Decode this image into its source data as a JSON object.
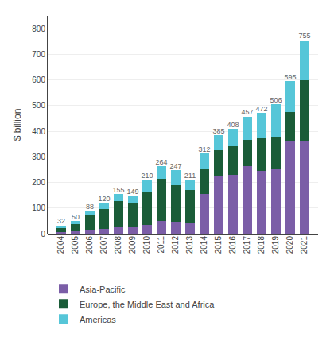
{
  "chart_data": {
    "type": "bar",
    "stacked": true,
    "categories": [
      "2004",
      "2005",
      "2006",
      "2007",
      "2008",
      "2009",
      "2010",
      "2011",
      "2012",
      "2013",
      "2014",
      "2015",
      "2016",
      "2017",
      "2018",
      "2019",
      "2020",
      "2021"
    ],
    "series": [
      {
        "name": "Asia-Pacific",
        "color": "#7b5ea7",
        "values": [
          5,
          8,
          15,
          20,
          28,
          26,
          35,
          50,
          45,
          40,
          155,
          225,
          230,
          265,
          245,
          250,
          360,
          360
        ]
      },
      {
        "name": "Europe, the Middle East and Africa",
        "color": "#1a5c38",
        "values": [
          18,
          28,
          55,
          75,
          100,
          95,
          130,
          165,
          145,
          130,
          100,
          100,
          110,
          100,
          130,
          130,
          115,
          240
        ]
      },
      {
        "name": "Americas",
        "color": "#56c6d8",
        "values": [
          9,
          14,
          18,
          25,
          27,
          28,
          45,
          49,
          57,
          41,
          57,
          60,
          68,
          92,
          97,
          126,
          120,
          155
        ]
      }
    ],
    "totals": [
      32,
      50,
      88,
      120,
      155,
      149,
      210,
      264,
      247,
      211,
      312,
      385,
      408,
      457,
      472,
      506,
      595,
      755
    ],
    "y_label": "$ billion",
    "ylim": [
      0,
      850
    ],
    "yticks": [
      0,
      100,
      200,
      300,
      400,
      500,
      600,
      700,
      800
    ],
    "grid": true,
    "legend": "bottom"
  }
}
